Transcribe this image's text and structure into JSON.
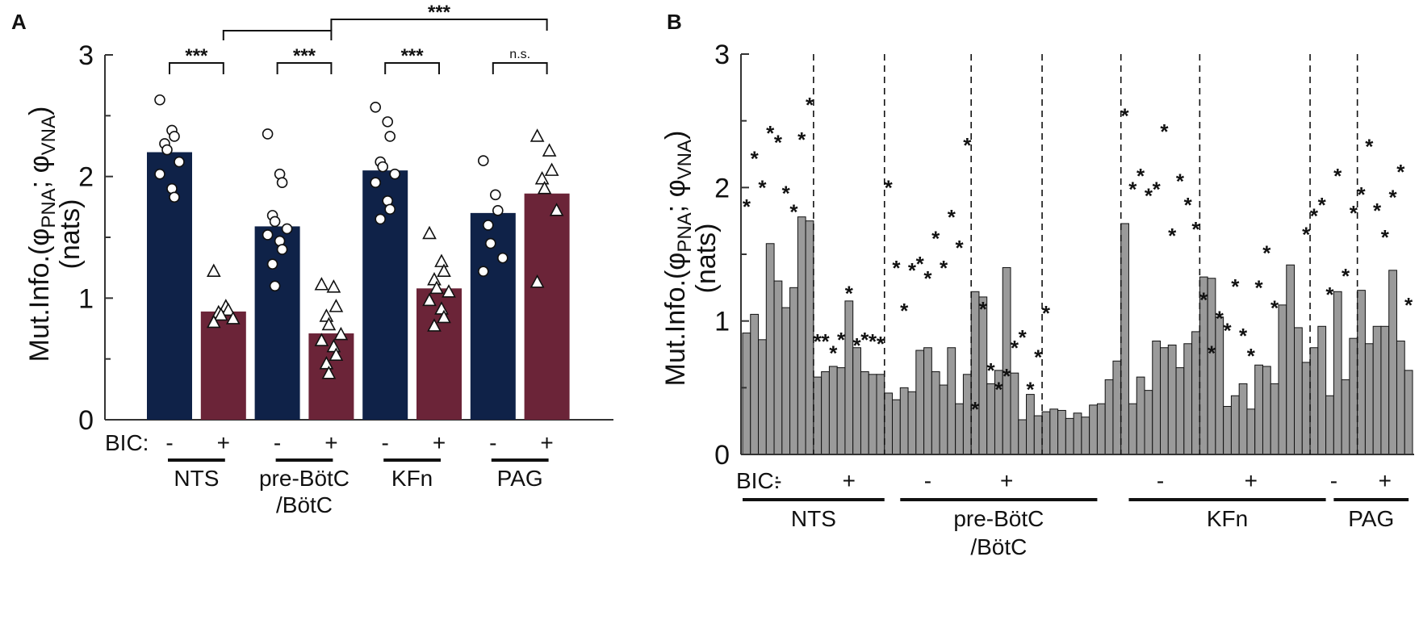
{
  "chart_data": [
    {
      "panel_label": "A",
      "type": "bar",
      "ylabel": "Mut.Info.(φPNA; φVNA) (nats)",
      "ylabel_parts": {
        "prefix": "Mut.Info.(φ",
        "sub1": "PNA",
        "mid": "; φ",
        "sub2": "VNA",
        "suffix": ")",
        "line2": "(nats)"
      },
      "ylim": [
        0,
        3
      ],
      "yticks": [
        "0",
        "1",
        "2",
        "3"
      ],
      "bic_label": "BIC:",
      "groups": [
        "NTS",
        "pre-BötC/BötC",
        "KFn",
        "PAG"
      ],
      "group_lines": [
        [
          "NTS"
        ],
        [
          "pre-BötC",
          "/BötC"
        ],
        [
          "KFn"
        ],
        [
          "PAG"
        ]
      ],
      "bars": [
        {
          "group": "NTS",
          "bic": "-",
          "mean": 2.2,
          "sd": 0.24,
          "color": "#0f2248",
          "points": [
            2.63,
            2.38,
            2.33,
            2.27,
            2.22,
            2.12,
            2.02,
            1.9,
            1.83
          ]
        },
        {
          "group": "NTS",
          "bic": "+",
          "mean": 0.89,
          "sd": 0.12,
          "color": "#6b2438",
          "points": [
            1.22,
            0.93,
            0.9,
            0.88,
            0.86,
            0.83,
            0.8
          ]
        },
        {
          "group": "pre-BötC/BötC",
          "bic": "-",
          "mean": 1.59,
          "sd": 0.33,
          "color": "#0f2248",
          "points": [
            2.35,
            2.02,
            1.95,
            1.68,
            1.63,
            1.57,
            1.52,
            1.47,
            1.4,
            1.28,
            1.1
          ]
        },
        {
          "group": "pre-BötC/BötC",
          "bic": "+",
          "mean": 0.71,
          "sd": 0.23,
          "color": "#6b2438",
          "points": [
            1.11,
            1.09,
            0.93,
            0.85,
            0.78,
            0.7,
            0.65,
            0.6,
            0.53,
            0.46,
            0.38
          ]
        },
        {
          "group": "KFn",
          "bic": "-",
          "mean": 2.05,
          "sd": 0.28,
          "color": "#0f2248",
          "points": [
            2.57,
            2.45,
            2.33,
            2.12,
            2.08,
            2.02,
            1.95,
            1.8,
            1.73,
            1.65
          ]
        },
        {
          "group": "KFn",
          "bic": "+",
          "mean": 1.08,
          "sd": 0.22,
          "color": "#6b2438",
          "points": [
            1.53,
            1.3,
            1.22,
            1.15,
            1.08,
            1.05,
            0.98,
            0.91,
            0.84,
            0.77
          ]
        },
        {
          "group": "PAG",
          "bic": "-",
          "mean": 1.7,
          "sd": 0.31,
          "color": "#0f2248",
          "points": [
            2.13,
            1.85,
            1.72,
            1.6,
            1.45,
            1.33,
            1.22
          ]
        },
        {
          "group": "PAG",
          "bic": "+",
          "mean": 1.86,
          "sd": 0.36,
          "color": "#6b2438",
          "points": [
            2.33,
            2.21,
            2.05,
            1.98,
            1.9,
            1.72,
            1.13
          ]
        }
      ],
      "significance": [
        {
          "from": 0,
          "to": 1,
          "label": "***"
        },
        {
          "from": 2,
          "to": 3,
          "label": "***"
        },
        {
          "from": 4,
          "to": 5,
          "label": "***"
        },
        {
          "from": 6,
          "to": 7,
          "label": "n.s."
        },
        {
          "from": 1,
          "to": 3,
          "label": "",
          "level": 2
        },
        {
          "from": 3,
          "to": 7,
          "label": "***",
          "level": 3
        }
      ]
    },
    {
      "panel_label": "B",
      "type": "bar",
      "ylabel": "Mut.Info.(φPNA; φVNA) (nats)",
      "ylabel_parts": {
        "prefix": "Mut.Info.(φ",
        "sub1": "PNA",
        "mid": "; φ",
        "sub2": "VNA",
        "suffix": ")",
        "line2": "(nats)"
      },
      "ylim": [
        0,
        3
      ],
      "yticks": [
        "0",
        "1",
        "2",
        "3"
      ],
      "bar_color": "#9a9a9a",
      "bic_label": "BIC:",
      "bars": [
        0.91,
        1.05,
        0.86,
        1.58,
        1.3,
        1.1,
        1.25,
        1.78,
        1.75,
        0.58,
        0.62,
        0.66,
        0.65,
        1.15,
        0.8,
        0.62,
        0.6,
        0.6,
        0.46,
        0.41,
        0.5,
        0.47,
        0.78,
        0.8,
        0.62,
        0.52,
        0.8,
        0.38,
        0.6,
        1.22,
        1.18,
        0.53,
        0.63,
        1.4,
        0.61,
        0.26,
        0.45,
        0.29,
        0.32,
        0.34,
        0.33,
        0.27,
        0.31,
        0.28,
        0.37,
        0.38,
        0.56,
        0.7,
        1.73,
        0.38,
        0.58,
        0.48,
        0.85,
        0.8,
        0.82,
        0.65,
        0.83,
        0.92,
        1.33,
        1.32,
        1.03,
        0.36,
        0.44,
        0.53,
        0.34,
        0.67,
        0.66,
        0.53,
        1.12,
        1.42,
        0.95,
        0.69,
        0.8,
        0.96,
        0.44,
        1.22,
        0.56,
        0.87,
        1.23,
        0.83,
        0.96,
        0.96,
        1.38,
        0.85,
        0.63
      ],
      "markers_pre": [
        [
          0.5,
          1.87
        ],
        [
          1.5,
          2.23
        ],
        [
          2.5,
          2.01
        ],
        [
          3.5,
          2.42
        ],
        [
          4.5,
          2.35
        ],
        [
          5.5,
          1.97
        ],
        [
          6.5,
          1.83
        ],
        [
          7.5,
          2.37
        ],
        [
          8.5,
          2.63
        ],
        [
          18.5,
          2.01
        ],
        [
          19.5,
          1.41
        ],
        [
          20.5,
          1.09
        ],
        [
          21.5,
          1.39
        ],
        [
          22.5,
          1.44
        ],
        [
          23.5,
          1.33
        ],
        [
          24.5,
          1.63
        ],
        [
          25.5,
          1.41
        ],
        [
          26.5,
          1.79
        ],
        [
          27.5,
          1.56
        ],
        [
          28.5,
          2.33
        ],
        [
          48.5,
          2.55
        ],
        [
          49.5,
          2.0
        ],
        [
          50.5,
          2.1
        ],
        [
          51.5,
          1.95
        ],
        [
          52.5,
          2.0
        ],
        [
          53.5,
          2.43
        ],
        [
          54.5,
          1.65
        ],
        [
          55.5,
          2.06
        ],
        [
          56.5,
          1.88
        ],
        [
          57.5,
          1.7
        ],
        [
          71.5,
          1.66
        ],
        [
          72.5,
          1.8
        ],
        [
          73.5,
          1.88
        ],
        [
          74.5,
          1.21
        ],
        [
          75.5,
          2.1
        ],
        [
          76.5,
          1.35
        ],
        [
          77.5,
          1.82
        ]
      ],
      "markers_post": [
        [
          9.5,
          0.86
        ],
        [
          10.5,
          0.86
        ],
        [
          11.5,
          0.77
        ],
        [
          12.5,
          0.87
        ],
        [
          13.5,
          1.22
        ],
        [
          14.5,
          0.83
        ],
        [
          15.5,
          0.87
        ],
        [
          16.5,
          0.86
        ],
        [
          17.5,
          0.84
        ],
        [
          29.5,
          0.35
        ],
        [
          30.5,
          1.1
        ],
        [
          31.5,
          0.64
        ],
        [
          32.5,
          0.5
        ],
        [
          33.5,
          0.6
        ],
        [
          34.5,
          0.81
        ],
        [
          35.5,
          0.89
        ],
        [
          36.5,
          0.5
        ],
        [
          37.5,
          0.74
        ],
        [
          38.5,
          1.07
        ],
        [
          58.5,
          1.17
        ],
        [
          59.5,
          0.77
        ],
        [
          60.5,
          1.03
        ],
        [
          61.5,
          0.94
        ],
        [
          62.5,
          1.27
        ],
        [
          63.5,
          0.9
        ],
        [
          64.5,
          0.75
        ],
        [
          65.5,
          1.26
        ],
        [
          66.5,
          1.52
        ],
        [
          67.5,
          1.11
        ],
        [
          78.5,
          1.96
        ],
        [
          79.5,
          2.32
        ],
        [
          80.5,
          1.84
        ],
        [
          81.5,
          1.64
        ],
        [
          82.5,
          1.94
        ],
        [
          83.5,
          2.13
        ],
        [
          84.5,
          1.13
        ]
      ],
      "dividers": [
        9,
        18,
        29,
        38,
        48,
        58,
        72,
        78
      ],
      "bic_marks": [
        {
          "idx": 4.5,
          "label": "-"
        },
        {
          "idx": 13.5,
          "label": "+"
        },
        {
          "idx": 23.5,
          "label": "-"
        },
        {
          "idx": 33.5,
          "label": "+"
        },
        {
          "idx": 53,
          "label": "-"
        },
        {
          "idx": 64.5,
          "label": "+"
        },
        {
          "idx": 75,
          "label": "-"
        },
        {
          "idx": 81.5,
          "label": "+"
        }
      ],
      "groups": [
        "NTS",
        "pre-BötC/BötC",
        "KFn",
        "PAG"
      ],
      "group_lines": [
        [
          "NTS"
        ],
        [
          "pre-BötC",
          "/BötC"
        ],
        [
          "KFn"
        ],
        [
          "PAG"
        ]
      ],
      "group_ranges": [
        [
          0,
          18
        ],
        [
          20,
          45
        ],
        [
          49,
          74
        ],
        [
          75,
          84.5
        ]
      ]
    }
  ]
}
